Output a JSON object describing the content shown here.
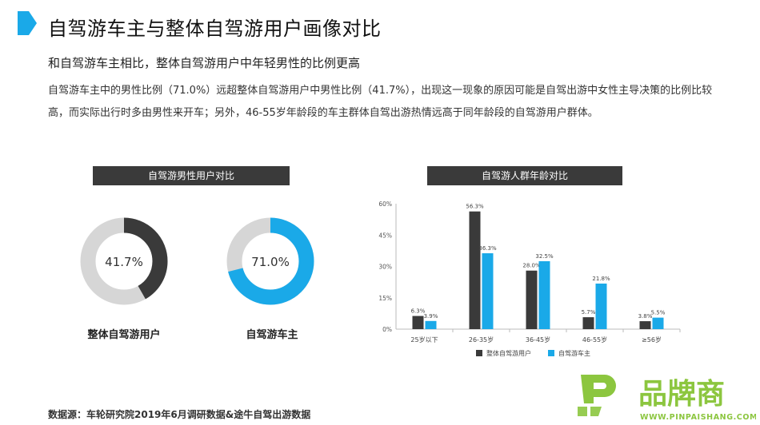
{
  "header": {
    "title": "自驾游车主与整体自驾游用户画像对比",
    "subtitle": "和自驾游车主相比，整体自驾游用户中年轻男性的比例更高",
    "paragraph": "自驾游车主中的男性比例（71.0%）远超整体自驾游用户中男性比例（41.7%），出现这一现象的原因可能是自驾出游中女性主导决策的比例比较高，而实际出行时多由男性来开车；另外，46-55岁年龄段的车主群体自驾出游热情远高于同年龄段的自驾游用户群体。"
  },
  "colors": {
    "accent": "#1aa9e8",
    "dark": "#3a3a3a",
    "track": "#d6d6d6"
  },
  "chart_data": [
    {
      "type": "pie",
      "title": "自驾游男性用户对比",
      "donuts": [
        {
          "label": "整体自驾游用户",
          "value": 41.7,
          "value_text": "41.7%",
          "color": "#3a3a3a"
        },
        {
          "label": "自驾游车主",
          "value": 71.0,
          "value_text": "71.0%",
          "color": "#1aa9e8"
        }
      ]
    },
    {
      "type": "bar",
      "title": "自驾游人群年龄对比",
      "categories": [
        "25岁以下",
        "26-35岁",
        "36-45岁",
        "46-55岁",
        "≥56岁"
      ],
      "series": [
        {
          "name": "整体自驾游用户",
          "values": [
            6.3,
            56.3,
            28.0,
            5.7,
            3.8
          ],
          "color": "#3a3a3a"
        },
        {
          "name": "自驾游车主",
          "values": [
            3.9,
            36.3,
            32.5,
            21.8,
            5.5
          ],
          "color": "#1aa9e8"
        }
      ],
      "yticks": [
        "0%",
        "15%",
        "30%",
        "45%",
        "60%"
      ],
      "ylim": [
        0,
        60
      ],
      "grid": false,
      "legend": "bottom"
    }
  ],
  "footer": {
    "source": "数据源：车轮研究院2019年6月调研数据&途牛自驾出游数据",
    "logo_text": "品牌商",
    "logo_url": "WWW.PINPAISHANG.COM"
  }
}
